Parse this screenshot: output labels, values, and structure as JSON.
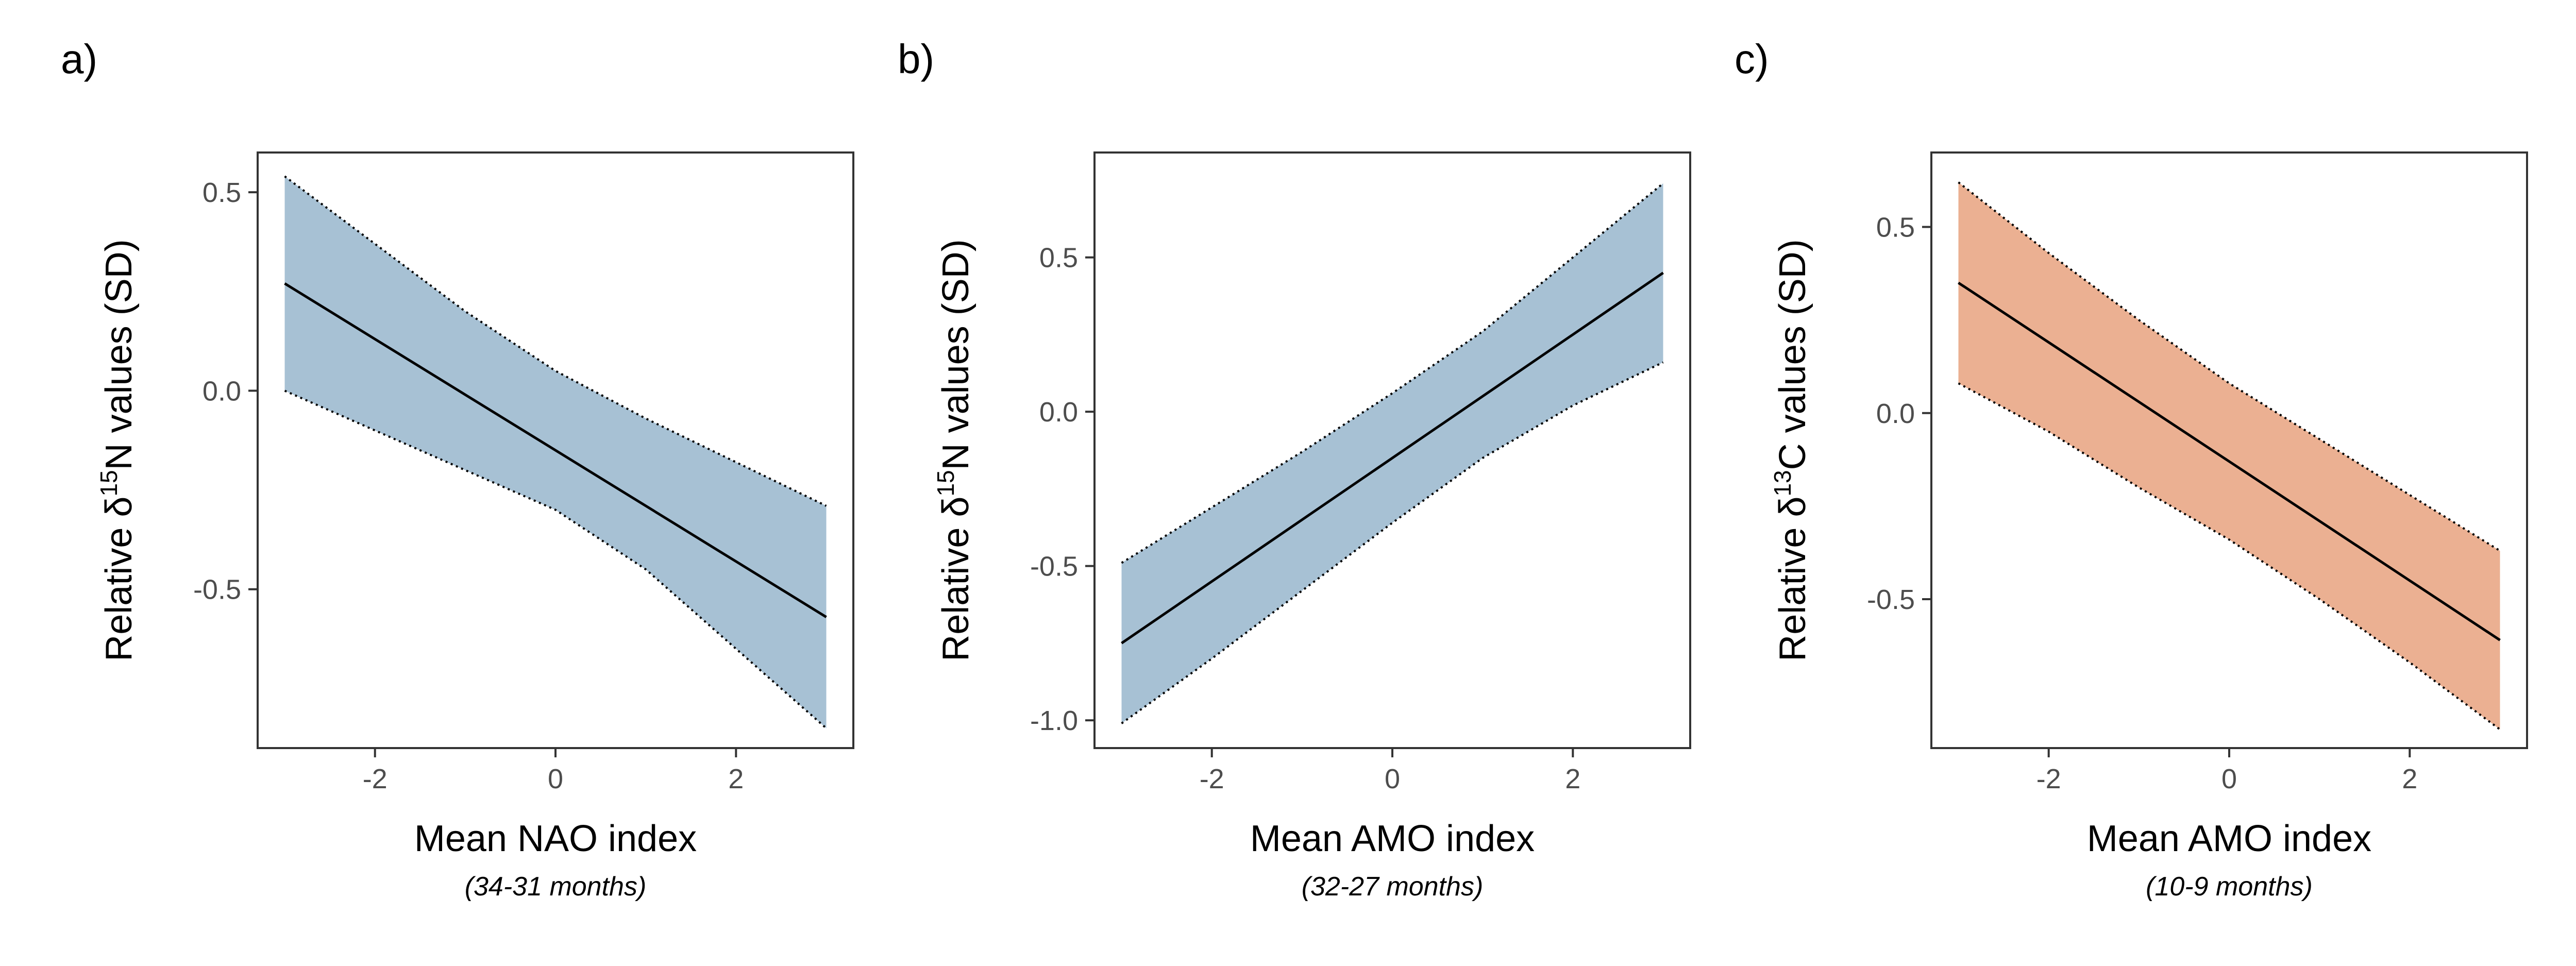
{
  "chart_data": [
    {
      "type": "line",
      "panel_label": "a)",
      "xlabel": "Mean NAO index",
      "subtitle": "(34-31 months)",
      "ylabel_prefix": "Relative δ",
      "ylabel_sup": "15",
      "ylabel_suffix": "N values (SD)",
      "xlim": [
        -3.3,
        3.3
      ],
      "ylim": [
        -0.9,
        0.6
      ],
      "xticks": [
        -2,
        0,
        2
      ],
      "yticks": [
        -0.5,
        0.0,
        0.5
      ],
      "xtick_labels": [
        "-2",
        "0",
        "2"
      ],
      "ytick_labels": [
        "-0.5",
        "0.0",
        "0.5"
      ],
      "fill_color": "#a7c1d4",
      "line_color": "#000000",
      "series": [
        {
          "x": [
            -3,
            -2,
            -1,
            0,
            1,
            2,
            3
          ],
          "fit": [
            0.27,
            0.13,
            -0.01,
            -0.15,
            -0.29,
            -0.43,
            -0.57
          ],
          "lower": [
            0.0,
            -0.1,
            -0.2,
            -0.3,
            -0.45,
            -0.65,
            -0.85
          ],
          "upper": [
            0.54,
            0.37,
            0.2,
            0.05,
            -0.07,
            -0.18,
            -0.29
          ]
        }
      ]
    },
    {
      "type": "line",
      "panel_label": "b)",
      "xlabel": "Mean AMO index",
      "subtitle": "(32-27 months)",
      "ylabel_prefix": "Relative δ",
      "ylabel_sup": "15",
      "ylabel_suffix": "N values (SD)",
      "xlim": [
        -3.3,
        3.3
      ],
      "ylim": [
        -1.09,
        0.84
      ],
      "xticks": [
        -2,
        0,
        2
      ],
      "yticks": [
        -1.0,
        -0.5,
        0.0,
        0.5
      ],
      "xtick_labels": [
        "-2",
        "0",
        "2"
      ],
      "ytick_labels": [
        "-1.0",
        "-0.5",
        "0.0",
        "0.5"
      ],
      "fill_color": "#a7c1d4",
      "line_color": "#000000",
      "series": [
        {
          "x": [
            -3,
            -2,
            -1,
            0,
            1,
            2,
            3
          ],
          "fit": [
            -0.75,
            -0.55,
            -0.35,
            -0.15,
            0.05,
            0.25,
            0.45
          ],
          "lower": [
            -1.01,
            -0.8,
            -0.58,
            -0.36,
            -0.15,
            0.02,
            0.16
          ],
          "upper": [
            -0.49,
            -0.31,
            -0.13,
            0.06,
            0.26,
            0.5,
            0.74
          ]
        }
      ]
    },
    {
      "type": "line",
      "panel_label": "c)",
      "xlabel": "Mean AMO index",
      "subtitle": "(10-9 months)",
      "ylabel_prefix": "Relative δ",
      "ylabel_sup": "13",
      "ylabel_suffix": "C values (SD)",
      "xlim": [
        -3.3,
        3.3
      ],
      "ylim": [
        -0.9,
        0.7
      ],
      "xticks": [
        -2,
        0,
        2
      ],
      "yticks": [
        -0.5,
        0.0,
        0.5
      ],
      "xtick_labels": [
        "-2",
        "0",
        "2"
      ],
      "ytick_labels": [
        "-0.5",
        "0.0",
        "0.5"
      ],
      "fill_color": "#ebb092",
      "line_color": "#000000",
      "series": [
        {
          "x": [
            -3,
            -2,
            -1,
            0,
            1,
            2,
            3
          ],
          "fit": [
            0.35,
            0.19,
            0.03,
            -0.13,
            -0.29,
            -0.45,
            -0.61
          ],
          "lower": [
            0.08,
            -0.05,
            -0.2,
            -0.34,
            -0.5,
            -0.67,
            -0.85
          ],
          "upper": [
            0.62,
            0.43,
            0.25,
            0.08,
            -0.07,
            -0.22,
            -0.37
          ]
        }
      ]
    }
  ]
}
